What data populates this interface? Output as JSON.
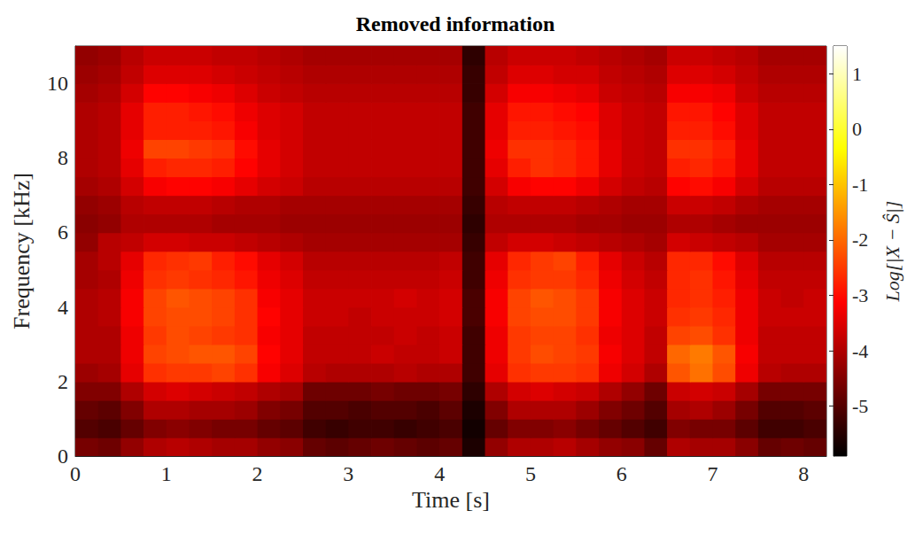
{
  "chart_data": {
    "type": "heatmap",
    "title": "Removed information",
    "x_label": "Time [s]",
    "y_label": "Frequency [kHz]",
    "colorbar_label": "Log[|X − Ŝ|]",
    "x": [
      0.125,
      0.375,
      0.625,
      0.875,
      1.125,
      1.375,
      1.625,
      1.875,
      2.125,
      2.375,
      2.625,
      2.875,
      3.125,
      3.375,
      3.625,
      3.875,
      4.125,
      4.375,
      4.625,
      4.875,
      5.125,
      5.375,
      5.625,
      5.875,
      6.125,
      6.375,
      6.625,
      6.875,
      7.125,
      7.375,
      7.625,
      7.875,
      8.125
    ],
    "y": [
      0.25,
      0.75,
      1.25,
      1.75,
      2.25,
      2.75,
      3.25,
      3.75,
      4.25,
      4.75,
      5.25,
      5.75,
      6.25,
      6.75,
      7.25,
      7.75,
      8.25,
      8.75,
      9.25,
      9.75,
      10.25,
      10.75
    ],
    "values": [
      [
        -4.6,
        -4.7,
        -4.3,
        -4.0,
        -3.9,
        -4.0,
        -4.1,
        -4.1,
        -4.3,
        -4.4,
        -4.8,
        -4.9,
        -4.8,
        -4.7,
        -4.8,
        -4.9,
        -4.8,
        -5.6,
        -4.3,
        -4.0,
        -4.0,
        -3.9,
        -4.1,
        -4.3,
        -4.4,
        -4.8,
        -4.0,
        -4.1,
        -4.1,
        -4.4,
        -4.8,
        -4.7,
        -4.8
      ],
      [
        -5.0,
        -5.1,
        -4.8,
        -4.5,
        -4.4,
        -4.5,
        -4.6,
        -4.6,
        -4.8,
        -4.9,
        -5.2,
        -5.3,
        -5.2,
        -5.2,
        -5.3,
        -5.2,
        -5.1,
        -5.7,
        -4.8,
        -4.5,
        -4.5,
        -4.4,
        -4.6,
        -4.8,
        -5.0,
        -5.2,
        -4.5,
        -4.6,
        -4.6,
        -4.9,
        -5.2,
        -5.2,
        -5.1
      ],
      [
        -4.8,
        -4.9,
        -4.5,
        -4.0,
        -4.0,
        -4.1,
        -4.1,
        -4.2,
        -4.5,
        -4.6,
        -5.0,
        -5.0,
        -5.1,
        -5.0,
        -5.0,
        -5.1,
        -4.9,
        -5.6,
        -4.5,
        -4.0,
        -4.0,
        -4.0,
        -4.2,
        -4.5,
        -4.7,
        -5.0,
        -4.1,
        -4.0,
        -4.2,
        -4.6,
        -5.0,
        -5.0,
        -4.9
      ],
      [
        -4.5,
        -4.5,
        -4.0,
        -3.6,
        -3.5,
        -3.6,
        -3.7,
        -3.8,
        -4.0,
        -4.1,
        -4.7,
        -4.7,
        -4.7,
        -4.6,
        -4.7,
        -4.7,
        -4.6,
        -5.4,
        -4.0,
        -3.6,
        -3.5,
        -3.6,
        -3.7,
        -4.0,
        -4.3,
        -4.7,
        -3.7,
        -3.6,
        -3.7,
        -4.1,
        -4.6,
        -4.6,
        -4.6
      ],
      [
        -4.2,
        -4.1,
        -3.4,
        -2.6,
        -2.5,
        -2.5,
        -2.4,
        -2.6,
        -3.2,
        -3.5,
        -3.9,
        -4.0,
        -4.0,
        -4.0,
        -3.9,
        -4.0,
        -4.0,
        -5.2,
        -3.4,
        -2.6,
        -2.5,
        -2.5,
        -2.6,
        -3.3,
        -3.6,
        -4.0,
        -2.2,
        -1.9,
        -2.3,
        -3.3,
        -3.9,
        -4.0,
        -4.0
      ],
      [
        -4.0,
        -4.0,
        -3.3,
        -2.4,
        -2.3,
        -2.2,
        -2.2,
        -2.4,
        -3.1,
        -3.4,
        -3.8,
        -3.8,
        -3.8,
        -3.7,
        -3.8,
        -3.8,
        -3.7,
        -5.2,
        -3.3,
        -2.5,
        -2.3,
        -2.4,
        -2.5,
        -3.2,
        -3.5,
        -3.8,
        -2.0,
        -1.8,
        -2.2,
        -3.2,
        -3.8,
        -3.8,
        -3.8
      ],
      [
        -4.0,
        -4.0,
        -3.3,
        -2.5,
        -2.3,
        -2.4,
        -2.5,
        -2.6,
        -3.2,
        -3.4,
        -3.8,
        -3.8,
        -3.8,
        -3.8,
        -3.7,
        -3.8,
        -3.7,
        -5.2,
        -3.3,
        -2.5,
        -2.4,
        -2.4,
        -2.6,
        -3.3,
        -3.5,
        -3.8,
        -2.4,
        -2.3,
        -2.6,
        -3.3,
        -3.8,
        -3.8,
        -3.8
      ],
      [
        -4.0,
        -3.9,
        -3.2,
        -2.4,
        -2.3,
        -2.3,
        -2.4,
        -2.6,
        -3.1,
        -3.4,
        -3.7,
        -3.7,
        -3.8,
        -3.7,
        -3.7,
        -3.7,
        -3.6,
        -5.1,
        -3.2,
        -2.4,
        -2.3,
        -2.3,
        -2.5,
        -3.2,
        -3.5,
        -3.7,
        -2.6,
        -2.5,
        -2.7,
        -3.3,
        -3.7,
        -3.7,
        -3.7
      ],
      [
        -4.0,
        -3.9,
        -3.2,
        -2.4,
        -2.2,
        -2.3,
        -2.4,
        -2.6,
        -3.2,
        -3.4,
        -3.7,
        -3.7,
        -3.7,
        -3.7,
        -3.6,
        -3.7,
        -3.6,
        -5.1,
        -3.2,
        -2.4,
        -2.2,
        -2.3,
        -2.5,
        -3.2,
        -3.5,
        -3.7,
        -2.7,
        -2.6,
        -2.8,
        -3.3,
        -3.7,
        -3.8,
        -3.7
      ],
      [
        -4.1,
        -4.0,
        -3.3,
        -2.6,
        -2.5,
        -2.6,
        -2.7,
        -2.9,
        -3.3,
        -3.5,
        -3.8,
        -3.8,
        -3.8,
        -3.8,
        -3.8,
        -3.8,
        -3.7,
        -5.2,
        -3.3,
        -2.6,
        -2.5,
        -2.5,
        -2.7,
        -3.3,
        -3.6,
        -3.8,
        -2.7,
        -2.6,
        -2.9,
        -3.4,
        -3.8,
        -3.8,
        -3.8
      ],
      [
        -4.1,
        -3.9,
        -3.4,
        -2.7,
        -2.6,
        -2.5,
        -2.8,
        -3.0,
        -3.4,
        -3.6,
        -3.9,
        -3.9,
        -3.9,
        -3.9,
        -3.9,
        -3.9,
        -3.8,
        -5.2,
        -3.4,
        -2.7,
        -2.5,
        -2.4,
        -2.8,
        -3.4,
        -3.7,
        -3.9,
        -2.7,
        -2.7,
        -3.0,
        -3.5,
        -3.9,
        -3.9,
        -3.9
      ],
      [
        -4.3,
        -3.9,
        -3.8,
        -3.6,
        -3.6,
        -3.7,
        -3.7,
        -3.8,
        -3.9,
        -4.0,
        -4.1,
        -4.1,
        -4.1,
        -4.1,
        -4.1,
        -4.1,
        -4.1,
        -5.3,
        -3.8,
        -3.6,
        -3.6,
        -3.7,
        -3.8,
        -3.9,
        -4.0,
        -4.1,
        -3.6,
        -3.7,
        -3.8,
        -3.9,
        -4.1,
        -4.1,
        -4.1
      ],
      [
        -4.4,
        -4.3,
        -4.0,
        -4.0,
        -4.0,
        -4.0,
        -4.1,
        -4.1,
        -4.1,
        -4.2,
        -4.2,
        -4.2,
        -4.2,
        -4.2,
        -4.2,
        -4.2,
        -4.2,
        -5.4,
        -4.0,
        -4.0,
        -4.0,
        -4.0,
        -4.1,
        -4.1,
        -4.2,
        -4.2,
        -4.0,
        -4.0,
        -4.1,
        -4.2,
        -4.2,
        -4.2,
        -4.2
      ],
      [
        -4.3,
        -4.2,
        -3.9,
        -3.8,
        -3.8,
        -3.8,
        -3.9,
        -4.0,
        -4.0,
        -4.1,
        -4.1,
        -4.1,
        -4.1,
        -4.1,
        -4.1,
        -4.1,
        -4.1,
        -5.3,
        -3.9,
        -3.8,
        -3.8,
        -3.8,
        -3.9,
        -4.0,
        -4.1,
        -4.1,
        -3.7,
        -3.7,
        -3.8,
        -4.0,
        -4.1,
        -4.1,
        -4.1
      ],
      [
        -4.1,
        -4.0,
        -3.6,
        -3.2,
        -3.1,
        -3.1,
        -3.2,
        -3.4,
        -3.6,
        -3.7,
        -3.9,
        -3.9,
        -3.9,
        -3.9,
        -3.9,
        -3.9,
        -3.9,
        -5.2,
        -3.6,
        -3.2,
        -3.1,
        -3.1,
        -3.3,
        -3.6,
        -3.8,
        -3.9,
        -3.1,
        -3.0,
        -3.2,
        -3.6,
        -3.9,
        -3.9,
        -3.9
      ],
      [
        -4.0,
        -3.9,
        -3.4,
        -2.8,
        -2.7,
        -2.7,
        -2.8,
        -3.1,
        -3.4,
        -3.6,
        -3.8,
        -3.8,
        -3.8,
        -3.8,
        -3.8,
        -3.8,
        -3.8,
        -5.2,
        -3.4,
        -2.8,
        -2.6,
        -2.7,
        -2.9,
        -3.4,
        -3.7,
        -3.8,
        -2.8,
        -2.7,
        -2.9,
        -3.4,
        -3.8,
        -3.8,
        -3.8
      ],
      [
        -4.0,
        -3.9,
        -3.3,
        -2.4,
        -2.4,
        -2.5,
        -2.6,
        -3.0,
        -3.4,
        -3.6,
        -3.8,
        -3.8,
        -3.8,
        -3.8,
        -3.8,
        -3.8,
        -3.8,
        -5.2,
        -3.3,
        -2.6,
        -2.6,
        -2.7,
        -2.9,
        -3.4,
        -3.7,
        -3.8,
        -2.6,
        -2.6,
        -2.8,
        -3.4,
        -3.8,
        -3.8,
        -3.8
      ],
      [
        -4.0,
        -3.9,
        -3.4,
        -2.8,
        -2.8,
        -2.8,
        -2.9,
        -3.2,
        -3.5,
        -3.6,
        -3.8,
        -3.8,
        -3.8,
        -3.8,
        -3.8,
        -3.8,
        -3.8,
        -5.2,
        -3.4,
        -2.8,
        -2.8,
        -2.9,
        -3.0,
        -3.5,
        -3.7,
        -3.8,
        -2.8,
        -2.8,
        -3.0,
        -3.5,
        -3.8,
        -3.8,
        -3.8
      ],
      [
        -4.0,
        -3.9,
        -3.4,
        -2.8,
        -2.8,
        -2.9,
        -3.0,
        -3.3,
        -3.5,
        -3.6,
        -3.8,
        -3.8,
        -3.8,
        -3.8,
        -3.8,
        -3.8,
        -3.8,
        -5.2,
        -3.4,
        -2.9,
        -2.9,
        -3.0,
        -3.1,
        -3.5,
        -3.7,
        -3.8,
        -2.9,
        -2.9,
        -3.1,
        -3.5,
        -3.8,
        -3.8,
        -3.8
      ],
      [
        -4.1,
        -4.0,
        -3.6,
        -3.1,
        -3.1,
        -3.2,
        -3.3,
        -3.5,
        -3.7,
        -3.8,
        -3.9,
        -3.9,
        -3.9,
        -3.9,
        -3.9,
        -3.9,
        -3.9,
        -5.3,
        -3.6,
        -3.2,
        -3.2,
        -3.3,
        -3.4,
        -3.7,
        -3.8,
        -3.9,
        -3.2,
        -3.2,
        -3.3,
        -3.7,
        -3.9,
        -3.9,
        -3.9
      ],
      [
        -4.2,
        -4.1,
        -3.8,
        -3.5,
        -3.5,
        -3.5,
        -3.6,
        -3.7,
        -3.8,
        -3.9,
        -4.0,
        -4.0,
        -4.0,
        -4.0,
        -4.0,
        -4.0,
        -4.0,
        -5.3,
        -3.8,
        -3.5,
        -3.5,
        -3.6,
        -3.6,
        -3.8,
        -3.9,
        -4.0,
        -3.5,
        -3.5,
        -3.6,
        -3.8,
        -4.0,
        -4.0,
        -4.0
      ],
      [
        -4.3,
        -4.2,
        -3.9,
        -3.7,
        -3.7,
        -3.7,
        -3.8,
        -3.8,
        -3.9,
        -4.0,
        -4.1,
        -4.1,
        -4.1,
        -4.1,
        -4.1,
        -4.1,
        -4.1,
        -5.4,
        -3.9,
        -3.7,
        -3.7,
        -3.7,
        -3.8,
        -3.9,
        -4.0,
        -4.1,
        -3.7,
        -3.7,
        -3.8,
        -3.9,
        -4.1,
        -4.1,
        -4.1
      ]
    ],
    "xlim": [
      0,
      8.25
    ],
    "xticks": [
      0,
      1,
      2,
      3,
      4,
      5,
      6,
      7,
      8
    ],
    "ylim": [
      0,
      11
    ],
    "yticks": [
      0,
      2,
      4,
      6,
      8,
      10
    ],
    "colorbar_range": [
      -5.9,
      1.5
    ],
    "colorbar_ticks": [
      -5,
      -4,
      -3,
      -2,
      -1,
      0,
      1
    ],
    "grid": false
  }
}
